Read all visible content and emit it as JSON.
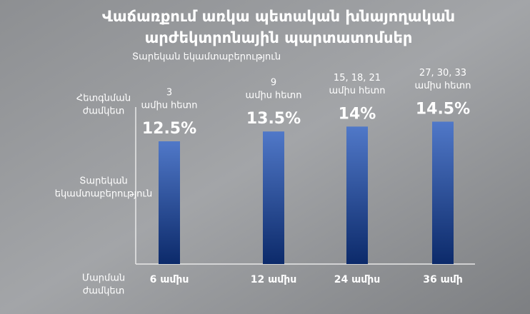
{
  "chart_data": {
    "type": "bar",
    "title": [
      "Վաճառքում առկա պետական խնայողական",
      "արժեկտրոնային պարտատոմսեր"
    ],
    "subtitle": "Տարեկան եկամտաբերություն",
    "row_labels": [
      [
        "Հետգնման",
        "ժամկետ"
      ],
      [
        "Տարեկան",
        "եկամտաբերություն"
      ],
      [
        "Մարման",
        "ժամկետ"
      ]
    ],
    "annotations": [
      [
        "3",
        "ամիս հետո"
      ],
      [
        "9",
        "ամիս հետո"
      ],
      [
        "15, 18, 21",
        "ամիս հետո"
      ],
      [
        "27, 30, 33",
        "ամիս հետո"
      ]
    ],
    "categories": [
      "6 ամիս",
      "12 ամիս",
      "24 ամիս",
      "36 ամի"
    ],
    "values": [
      12.5,
      13.5,
      14,
      14.5
    ],
    "value_labels": [
      "12.5%",
      "13.5%",
      "14%",
      "14.5%"
    ],
    "color": "#2a4f9e"
  }
}
